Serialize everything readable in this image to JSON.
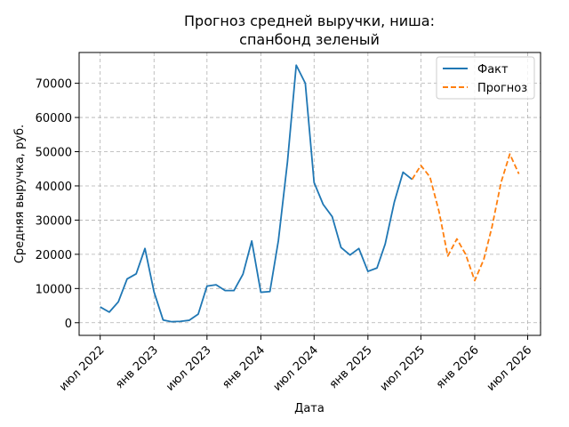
{
  "chart_data": {
    "type": "line",
    "title_lines": [
      "Прогноз средней выручки, ниша:",
      "спанбонд зеленый"
    ],
    "xlabel": "Дата",
    "ylabel": "Средняя выручка, руб.",
    "x_ticks": [
      "июл 2022",
      "янв 2023",
      "июл 2023",
      "янв 2024",
      "июл 2024",
      "янв 2025",
      "июл 2025",
      "янв 2026",
      "июл 2026"
    ],
    "y_ticks": [
      "0",
      "10000",
      "20000",
      "30000",
      "40000",
      "50000",
      "60000",
      "70000"
    ],
    "ylim": [
      -3700,
      79000
    ],
    "xlim": [
      "2022-04-20",
      "2026-08-14"
    ],
    "grid": true,
    "legend_position": "top-right",
    "series": [
      {
        "name": "Факт",
        "color": "#1f77b4",
        "style": "solid",
        "points": [
          [
            "2022-07-01",
            4600
          ],
          [
            "2022-08-01",
            3100
          ],
          [
            "2022-09-01",
            6100
          ],
          [
            "2022-10-01",
            12800
          ],
          [
            "2022-11-01",
            14300
          ],
          [
            "2022-12-01",
            21700
          ],
          [
            "2023-01-01",
            9000
          ],
          [
            "2023-02-01",
            800
          ],
          [
            "2023-03-01",
            300
          ],
          [
            "2023-04-01",
            400
          ],
          [
            "2023-05-01",
            700
          ],
          [
            "2023-06-01",
            2500
          ],
          [
            "2023-07-01",
            10700
          ],
          [
            "2023-08-01",
            11100
          ],
          [
            "2023-09-01",
            9400
          ],
          [
            "2023-10-01",
            9400
          ],
          [
            "2023-11-01",
            14200
          ],
          [
            "2023-12-01",
            23900
          ],
          [
            "2024-01-01",
            8900
          ],
          [
            "2024-02-01",
            9100
          ],
          [
            "2024-03-01",
            24000
          ],
          [
            "2024-04-01",
            47000
          ],
          [
            "2024-05-01",
            75300
          ],
          [
            "2024-06-01",
            70000
          ],
          [
            "2024-07-01",
            41000
          ],
          [
            "2024-08-01",
            34600
          ],
          [
            "2024-09-01",
            31000
          ],
          [
            "2024-10-01",
            22000
          ],
          [
            "2024-11-01",
            19800
          ],
          [
            "2024-12-01",
            21700
          ],
          [
            "2025-01-01",
            15000
          ],
          [
            "2025-02-01",
            16000
          ],
          [
            "2025-03-01",
            23000
          ],
          [
            "2025-04-01",
            35200
          ],
          [
            "2025-05-01",
            44000
          ],
          [
            "2025-06-01",
            41900
          ]
        ]
      },
      {
        "name": "Прогноз",
        "color": "#ff7f0e",
        "style": "dashed",
        "points": [
          [
            "2025-06-01",
            41900
          ],
          [
            "2025-07-01",
            46000
          ],
          [
            "2025-08-01",
            42600
          ],
          [
            "2025-09-01",
            32500
          ],
          [
            "2025-10-01",
            19500
          ],
          [
            "2025-11-01",
            24500
          ],
          [
            "2025-12-01",
            20000
          ],
          [
            "2026-01-01",
            12300
          ],
          [
            "2026-02-01",
            18500
          ],
          [
            "2026-03-01",
            28000
          ],
          [
            "2026-04-01",
            41000
          ],
          [
            "2026-05-01",
            49300
          ],
          [
            "2026-06-01",
            43500
          ]
        ]
      }
    ]
  }
}
